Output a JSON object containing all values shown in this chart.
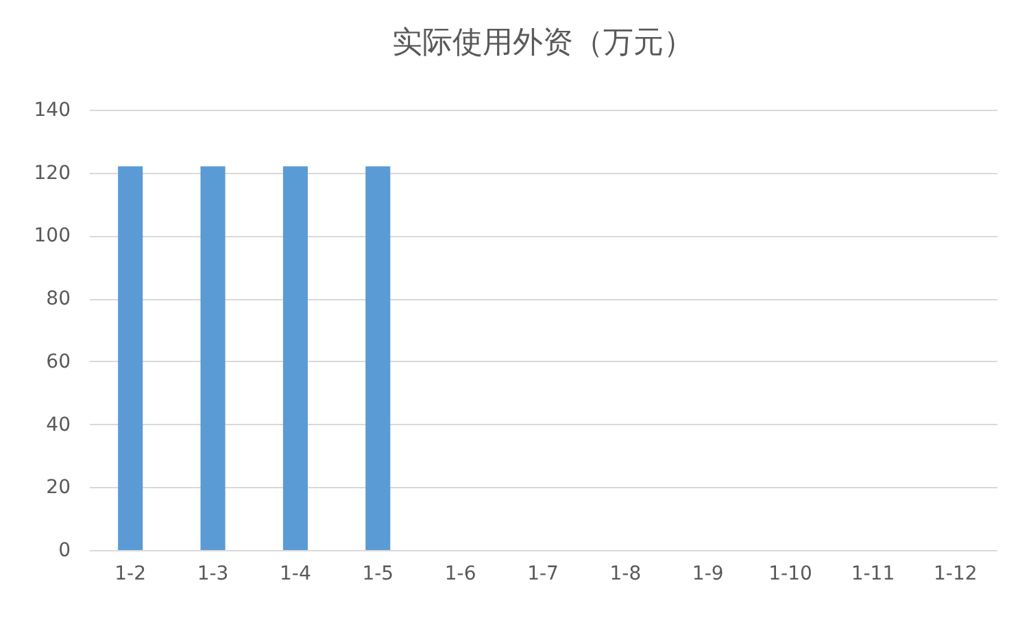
{
  "chart_data": {
    "type": "bar",
    "title": "实际使用外资（万元）",
    "categories": [
      "1-2",
      "1-3",
      "1-4",
      "1-5",
      "1-6",
      "1-7",
      "1-8",
      "1-9",
      "1-10",
      "1-11",
      "1-12"
    ],
    "values": [
      122,
      122,
      122,
      122,
      0,
      0,
      0,
      0,
      0,
      0,
      0
    ],
    "color": "#5b9bd5",
    "ylim": [
      0,
      140
    ],
    "yticks": [
      0,
      20,
      40,
      60,
      80,
      100,
      120,
      140
    ],
    "grid": "y"
  }
}
